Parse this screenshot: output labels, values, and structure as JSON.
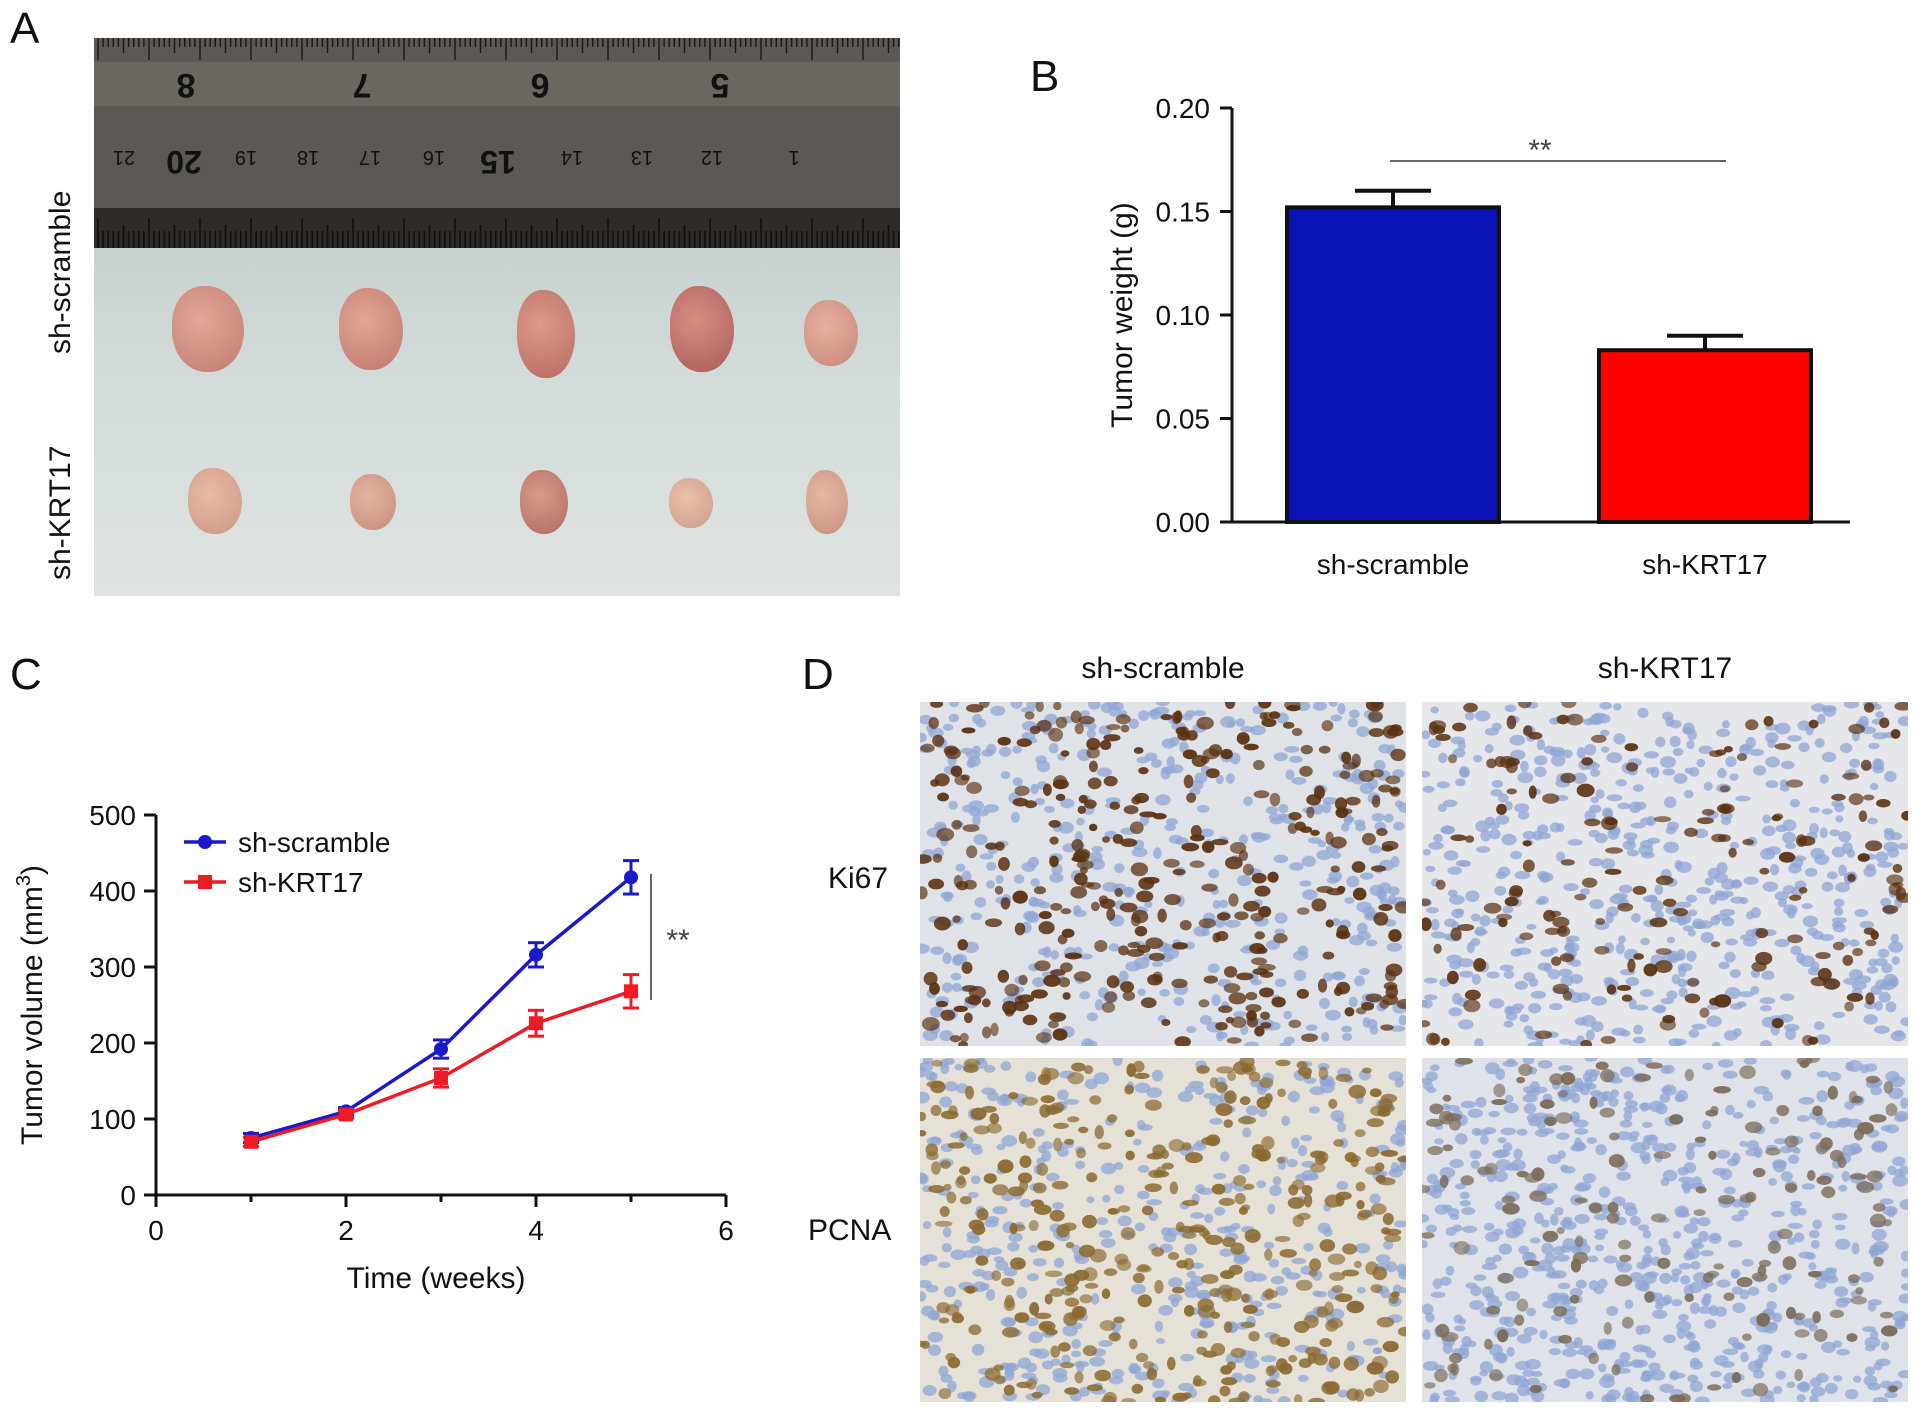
{
  "panels": {
    "a": {
      "letter": "A",
      "row_labels": [
        "sh-scramble",
        "sh-KRT17"
      ],
      "ruler_large_numbers": [
        "8",
        "7",
        "6",
        "5"
      ],
      "ruler_small_numbers": [
        "21",
        "20",
        "19",
        "18",
        "17",
        "16",
        "15",
        "14",
        "13",
        "12",
        "1"
      ]
    },
    "b": {
      "letter": "B"
    },
    "c": {
      "letter": "C"
    },
    "d": {
      "letter": "D",
      "column_labels": [
        "sh-scramble",
        "sh-KRT17"
      ],
      "row_labels": [
        "Ki67",
        "PCNA"
      ]
    }
  },
  "colors": {
    "blue": "#0a12b8",
    "red": "#ff0000",
    "line_blue": "#1a1acc",
    "line_red": "#ee1b24",
    "ki67_brown": "#5a3010",
    "pcna_brown": "#8a6a30",
    "nuclei_blue": "#8fa6d4"
  },
  "chart_data": [
    {
      "type": "bar",
      "categories": [
        "sh-scramble",
        "sh-KRT17"
      ],
      "values": [
        0.152,
        0.083
      ],
      "errors": [
        0.008,
        0.007
      ],
      "ylabel": "Tumor weight (g)",
      "ylim": [
        0,
        0.2
      ],
      "yticks": [
        "0.00",
        "0.05",
        "0.10",
        "0.15",
        "0.20"
      ],
      "significance": "**"
    },
    {
      "type": "line",
      "x": [
        1,
        2,
        3,
        4,
        5
      ],
      "series": [
        {
          "name": "sh-scramble",
          "values": [
            75,
            110,
            192,
            316,
            418
          ],
          "errors": [
            6,
            5,
            12,
            16,
            22
          ]
        },
        {
          "name": "sh-KRT17",
          "values": [
            70,
            106,
            154,
            226,
            268
          ],
          "errors": [
            6,
            5,
            12,
            17,
            22
          ]
        }
      ],
      "xlabel": "Time (weeks)",
      "ylabel_text": "Tumor volume (mm",
      "ylabel_sup": "3",
      "ylabel_close": ")",
      "xlim": [
        0,
        6
      ],
      "ylim": [
        0,
        500
      ],
      "xticks": [
        "0",
        "2",
        "4",
        "6"
      ],
      "yticks": [
        "0",
        "100",
        "200",
        "300",
        "400",
        "500"
      ],
      "legend_position": "top-left",
      "significance": "**"
    }
  ]
}
